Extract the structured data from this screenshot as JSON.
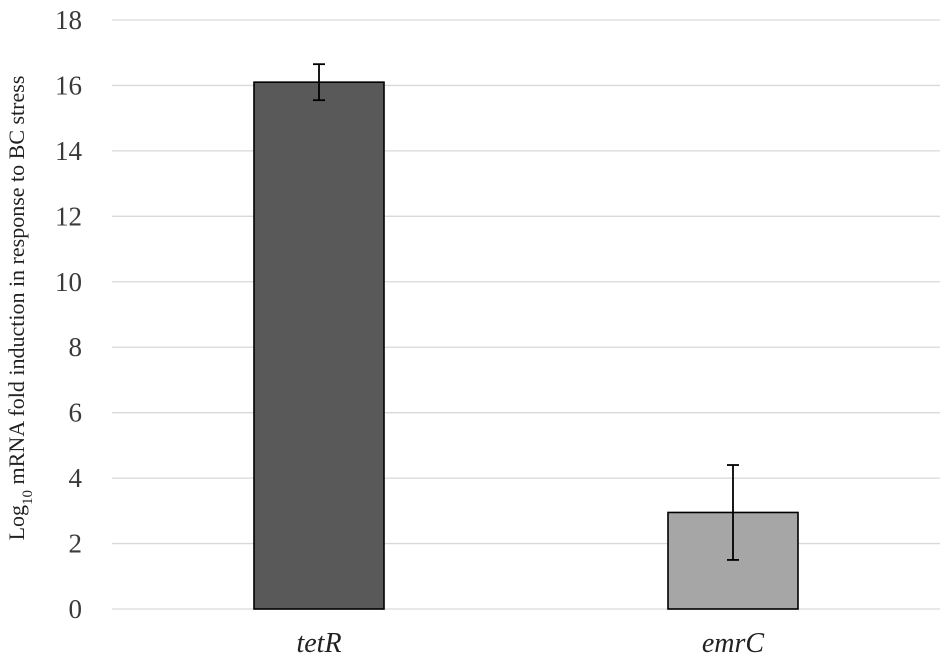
{
  "chart_data": {
    "type": "bar",
    "title": "",
    "xlabel": "",
    "ylabel": {
      "prefix": "Log",
      "subscript": "10",
      "suffix": " mRNA fold induction in response to BC stress"
    },
    "ylim": [
      0,
      18
    ],
    "yticks": [
      0,
      2,
      4,
      6,
      8,
      10,
      12,
      14,
      16,
      18
    ],
    "grid": true,
    "categories": [
      "tetR",
      "emrC"
    ],
    "values": [
      16.1,
      2.95
    ],
    "errors": [
      0.55,
      1.45
    ],
    "colors": [
      "#595959",
      "#a6a6a6"
    ]
  }
}
